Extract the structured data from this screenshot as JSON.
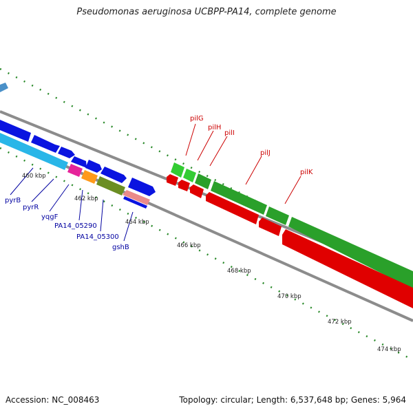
{
  "title": "Pseudomonas aeruginosa UCBPP-PA14, complete genome",
  "footer": {
    "accession": "Accession: NC_008463",
    "summary": "Topology: circular; Length: 6,537,648 bp; Genes: 5,964"
  },
  "colors": {
    "backbone": "#8c8c8c",
    "tick": "#2a8a2a",
    "forward_gene": "#0a14e0",
    "reverse_gene": "#e00000",
    "label_blue": "#0000a0",
    "label_red": "#cc0000"
  },
  "scale_labels": [
    "460 kbp",
    "462 kbp",
    "464 kbp",
    "466 kbp",
    "468 kbp",
    "470 kbp",
    "472 kbp",
    "474 kbp"
  ],
  "gene_labels": {
    "left": [
      "pyrB",
      "pyrR",
      "yqgF",
      "PA14_05290",
      "PA14_05300",
      "gshB"
    ],
    "right": [
      "pilG",
      "pilH",
      "pilI",
      "pilJ",
      "pilK"
    ]
  }
}
